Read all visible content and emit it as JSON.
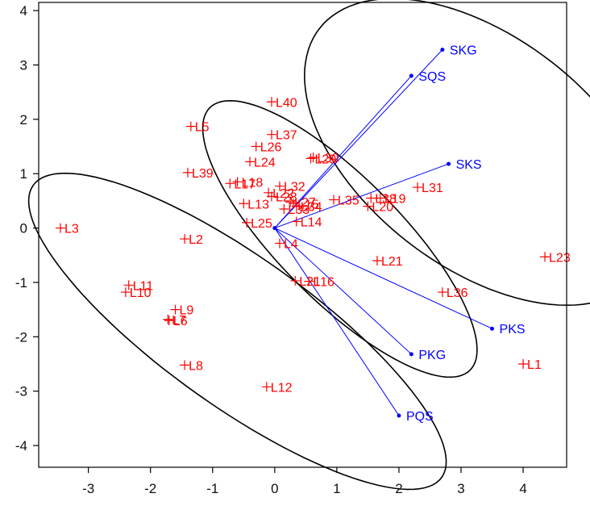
{
  "chart_data": {
    "type": "scatter",
    "title": "",
    "xlabel": "",
    "ylabel": "",
    "xlim": [
      -3.8,
      4.7
    ],
    "ylim": [
      -4.4,
      4.15
    ],
    "xticks": [
      -3,
      -2,
      -1,
      0,
      1,
      2,
      3,
      4
    ],
    "yticks": [
      -4,
      -3,
      -2,
      -1,
      0,
      1,
      2,
      3,
      4
    ],
    "grid": false,
    "legend": "none",
    "origin": [
      0.0,
      0.0
    ],
    "colors": {
      "observations": "#ff0000",
      "variables": "#0000ff",
      "ellipses": "#000000",
      "frame": "#000000"
    },
    "observations": [
      {
        "label": "L1",
        "x": 4.0,
        "y": -2.5
      },
      {
        "label": "L2",
        "x": -1.45,
        "y": -0.2
      },
      {
        "label": "L3",
        "x": -3.45,
        "y": 0.0
      },
      {
        "label": "L4",
        "x": 0.08,
        "y": -0.28
      },
      {
        "label": "L5",
        "x": -1.35,
        "y": 1.87
      },
      {
        "label": "L6",
        "x": -1.7,
        "y": -1.7
      },
      {
        "label": "L7",
        "x": -1.72,
        "y": -1.68
      },
      {
        "label": "L8",
        "x": -1.45,
        "y": -2.52
      },
      {
        "label": "L9",
        "x": -1.6,
        "y": -1.5
      },
      {
        "label": "L10",
        "x": -2.4,
        "y": -1.18
      },
      {
        "label": "L11",
        "x": -2.35,
        "y": -1.05
      },
      {
        "label": "L12",
        "x": -0.13,
        "y": -2.92
      },
      {
        "label": "L13",
        "x": -0.5,
        "y": 0.45
      },
      {
        "label": "L14",
        "x": 0.35,
        "y": 0.12
      },
      {
        "label": "L15",
        "x": 0.3,
        "y": 0.45
      },
      {
        "label": "L16",
        "x": 0.55,
        "y": -0.98
      },
      {
        "label": "L17",
        "x": -0.72,
        "y": 0.82
      },
      {
        "label": "L18",
        "x": -0.6,
        "y": 0.85
      },
      {
        "label": "L19",
        "x": 1.7,
        "y": 0.55
      },
      {
        "label": "L20",
        "x": 1.5,
        "y": 0.4
      },
      {
        "label": "L21",
        "x": 1.65,
        "y": -0.6
      },
      {
        "label": "L22",
        "x": -0.1,
        "y": 0.65
      },
      {
        "label": "L23",
        "x": 4.35,
        "y": -0.53
      },
      {
        "label": "L24",
        "x": -0.4,
        "y": 1.22
      },
      {
        "label": "L25",
        "x": -0.45,
        "y": 0.1
      },
      {
        "label": "L26",
        "x": -0.3,
        "y": 1.5
      },
      {
        "label": "L27",
        "x": 0.25,
        "y": 0.48
      },
      {
        "label": "L28",
        "x": -0.05,
        "y": 0.58
      },
      {
        "label": "L29",
        "x": 0.58,
        "y": 1.28
      },
      {
        "label": "L30",
        "x": 0.62,
        "y": 1.3
      },
      {
        "label": "L31",
        "x": 2.3,
        "y": 0.75
      },
      {
        "label": "L32",
        "x": 0.08,
        "y": 0.77
      },
      {
        "label": "L33",
        "x": 0.15,
        "y": 0.35
      },
      {
        "label": "L34",
        "x": 0.35,
        "y": 0.4
      },
      {
        "label": "L35",
        "x": 0.95,
        "y": 0.52
      },
      {
        "label": "L36",
        "x": 2.7,
        "y": -1.18
      },
      {
        "label": "L37",
        "x": -0.05,
        "y": 1.72
      },
      {
        "label": "L38",
        "x": 1.55,
        "y": 0.55
      },
      {
        "label": "L39",
        "x": -1.4,
        "y": 1.02
      },
      {
        "label": "L40",
        "x": -0.05,
        "y": 2.32
      },
      {
        "label": "L21c",
        "x": 0.33,
        "y": -0.97
      }
    ],
    "variables": [
      {
        "label": "SKG",
        "x": 2.7,
        "y": 3.28
      },
      {
        "label": "SQS",
        "x": 2.2,
        "y": 2.8
      },
      {
        "label": "SKS",
        "x": 2.8,
        "y": 1.18
      },
      {
        "label": "PKS",
        "x": 3.5,
        "y": -1.85
      },
      {
        "label": "PKG",
        "x": 2.2,
        "y": -2.32
      },
      {
        "label": "PQS",
        "x": 2.0,
        "y": -3.45
      }
    ],
    "ellipses": [
      {
        "center": [
          3.3,
          1.4
        ],
        "semi_axis_a": 3.45,
        "semi_axis_b": 2.0,
        "angle_deg": -45
      },
      {
        "center": [
          1.05,
          -0.2
        ],
        "semi_axis_a": 3.2,
        "semi_axis_b": 1.05,
        "angle_deg": -50
      },
      {
        "center": [
          -0.6,
          -1.9
        ],
        "semi_axis_a": 4.25,
        "semi_axis_b": 1.3,
        "angle_deg": -40
      }
    ]
  }
}
